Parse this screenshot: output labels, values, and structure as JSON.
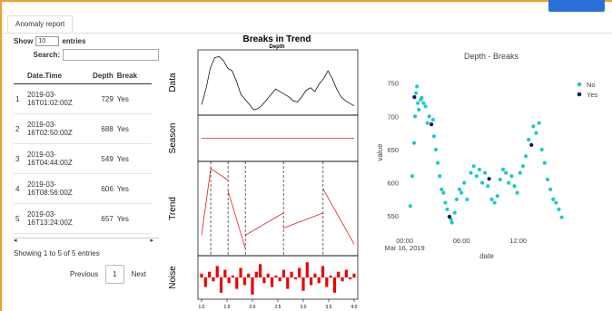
{
  "tab": "Anomaly report",
  "table": {
    "show_label": "Show",
    "length": "10",
    "entries_label": "entries",
    "search_label": "Search:",
    "columns": [
      "Date.Time",
      "Depth",
      "Break"
    ],
    "rows": [
      {
        "index": 1,
        "datetime": "2019-03-16T01:02:00Z",
        "depth": 729,
        "break": "Yes"
      },
      {
        "index": 2,
        "datetime": "2019-03-16T02:50:00Z",
        "depth": 688,
        "break": "Yes"
      },
      {
        "index": 3,
        "datetime": "2019-03-16T04:44:00Z",
        "depth": 549,
        "break": "Yes"
      },
      {
        "index": 4,
        "datetime": "2019-03-16T08:56:00Z",
        "depth": 606,
        "break": "Yes"
      },
      {
        "index": 5,
        "datetime": "2019-03-16T13:24:00Z",
        "depth": 657,
        "break": "Yes"
      }
    ],
    "info": "Showing 1 to 5 of 5 entries",
    "previous": "Previous",
    "page": "1",
    "next": "Next"
  },
  "decomposition": {
    "title": "Breaks in Trend",
    "subtitle": "Depth",
    "panels": [
      "Data",
      "Season",
      "Trend",
      "Noise"
    ],
    "xlim": [
      1,
      4
    ],
    "xticks": [
      {
        "value": 1,
        "label": "1.0"
      },
      {
        "value": 1.5,
        "label": "1.5"
      },
      {
        "value": 2,
        "label": "2.0"
      },
      {
        "value": 2.5,
        "label": "2.5"
      },
      {
        "value": 3,
        "label": "3.0"
      },
      {
        "value": 3.5,
        "label": "3.5"
      },
      {
        "value": 4,
        "label": "4.0"
      }
    ],
    "data": [
      560,
      620,
      700,
      740,
      745,
      730,
      700,
      690,
      650,
      600,
      580,
      560,
      540,
      545,
      560,
      580,
      600,
      620,
      610,
      600,
      590,
      575,
      570,
      590,
      615,
      625,
      610,
      640,
      660,
      690,
      660,
      620,
      590,
      575,
      565,
      555
    ],
    "data_ylim": [
      530,
      760
    ],
    "season": [
      0,
      0
    ],
    "season_ylim": [
      -1,
      1
    ],
    "trend_x": [
      1.0,
      1.18,
      1.52,
      null,
      1.52,
      1.86,
      null,
      1.86,
      2.61,
      null,
      2.61,
      3.39,
      null,
      3.39,
      4.0
    ],
    "trend_y": [
      20,
      95,
      82,
      null,
      70,
      5,
      null,
      20,
      45,
      null,
      28,
      45,
      null,
      72,
      10
    ],
    "trend_ylim": [
      0,
      100
    ],
    "breaks": [
      1.18,
      1.52,
      1.86,
      2.61,
      3.39
    ],
    "noise": [
      0.2,
      -0.5,
      0.3,
      -0.2,
      0.6,
      -0.8,
      0.4,
      -0.3,
      0.1,
      -0.6,
      0.5,
      -0.4,
      0.2,
      -0.9,
      0.3,
      0.7,
      -0.3,
      0.2,
      -0.5,
      0.1,
      -0.2,
      0.4,
      -0.6,
      0.3,
      -0.1,
      0.5,
      -0.7,
      0.8,
      -0.4,
      0.2,
      -0.3,
      0.6,
      -0.5,
      0.1,
      -0.8,
      0.3,
      -0.2,
      0.4,
      -0.1,
      0.2
    ],
    "noise_ylim": [
      -1,
      1
    ]
  },
  "chart_data": {
    "type": "scatter",
    "title": "Depth - Breaks",
    "x_label": "date",
    "y_label": "value",
    "xlim": [
      -1.5,
      17.5
    ],
    "ylim": [
      523,
      766
    ],
    "xticks": [
      {
        "value": 0,
        "label": "00:00"
      },
      {
        "value": 6,
        "label": "06:00"
      },
      {
        "value": 12,
        "label": "12:00"
      }
    ],
    "x_sublabel": "Mar 16, 2019",
    "yticks": [
      550,
      600,
      650,
      700,
      750
    ],
    "legend": "top-right",
    "series": [
      {
        "name": "No",
        "color": "#1fc8c8",
        "x": [
          0.6,
          0.8,
          1.0,
          1.1,
          1.2,
          1.3,
          1.4,
          1.5,
          1.7,
          1.8,
          2.0,
          2.2,
          2.4,
          2.6,
          3.0,
          3.1,
          3.3,
          3.5,
          3.7,
          3.9,
          4.1,
          4.3,
          4.5,
          4.9,
          5.0,
          5.3,
          5.5,
          5.8,
          6.0,
          6.3,
          6.6,
          7.0,
          7.3,
          7.6,
          7.9,
          8.2,
          8.5,
          8.8,
          9.2,
          9.5,
          9.8,
          10.1,
          10.4,
          10.7,
          11.0,
          11.3,
          11.6,
          11.9,
          12.2,
          12.5,
          12.8,
          13.1,
          13.6,
          13.9,
          14.2,
          14.5,
          14.8,
          15.1,
          15.4,
          15.7,
          16.0,
          16.3,
          16.6
        ],
        "values": [
          565,
          610,
          660,
          700,
          735,
          745,
          720,
          710,
          725,
          728,
          720,
          715,
          690,
          700,
          695,
          670,
          650,
          630,
          610,
          590,
          585,
          570,
          560,
          545,
          540,
          555,
          575,
          590,
          585,
          600,
          575,
          615,
          625,
          610,
          620,
          600,
          615,
          595,
          575,
          570,
          580,
          605,
          620,
          615,
          600,
          610,
          595,
          585,
          615,
          625,
          640,
          665,
          685,
          675,
          690,
          650,
          630,
          605,
          590,
          575,
          570,
          560,
          548
        ]
      },
      {
        "name": "Yes",
        "color": "#0b1a5e",
        "x": [
          1.03,
          2.83,
          4.73,
          8.93,
          13.4
        ],
        "values": [
          729,
          688,
          549,
          606,
          657
        ]
      }
    ]
  }
}
